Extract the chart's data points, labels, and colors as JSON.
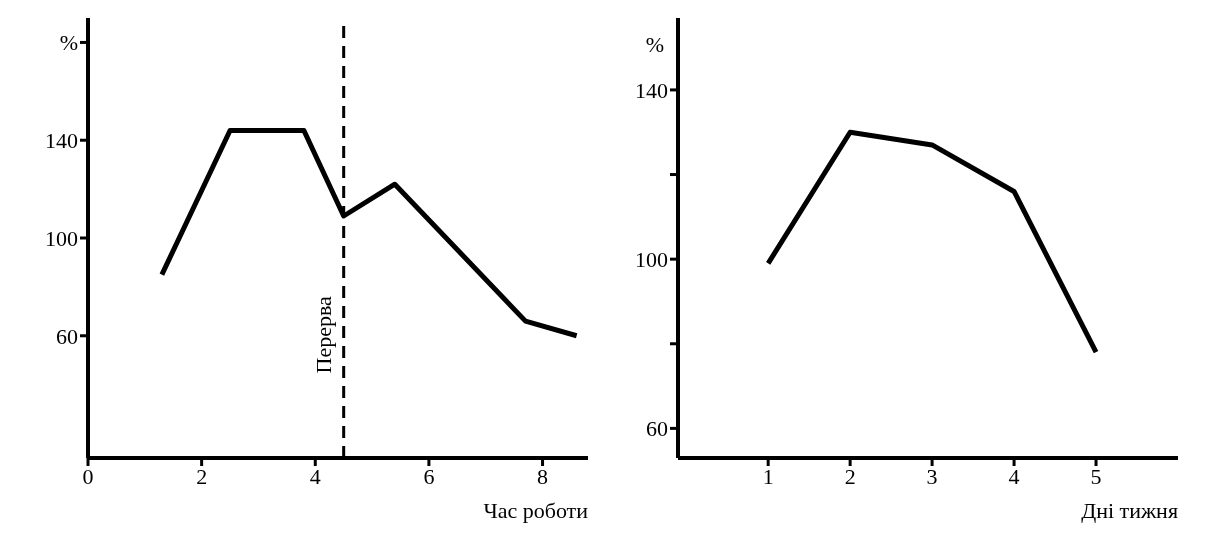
{
  "chart_data": [
    {
      "type": "line",
      "x": [
        1.3,
        2.5,
        3.8,
        4.5,
        5.4,
        7.7,
        8.6
      ],
      "series": [
        {
          "color": "#000000",
          "values": [
            85,
            144,
            144,
            109,
            122,
            66,
            60
          ]
        }
      ],
      "xlim": [
        0,
        8.8
      ],
      "xticks": [
        0,
        2,
        4,
        6,
        8
      ],
      "ylim": [
        10,
        190
      ],
      "yticks": [
        60,
        100,
        140,
        {
          "value": 180,
          "label": "%"
        }
      ],
      "xlabel": "Час роботи",
      "ref_lines": [
        {
          "axis": "x",
          "value": 4.5,
          "label": "Перерва",
          "line_style": "dashed",
          "color": "#000000"
        }
      ],
      "grid": false,
      "marker": "none",
      "line_style": "solid"
    },
    {
      "type": "line",
      "x": [
        1,
        2,
        3,
        4,
        5
      ],
      "series": [
        {
          "color": "#000000",
          "values": [
            99,
            130,
            127,
            116,
            78
          ]
        }
      ],
      "xlim": [
        -0.1,
        6
      ],
      "xticks": [
        1,
        2,
        3,
        4,
        5
      ],
      "ylim": [
        53,
        157
      ],
      "yticks": [
        60,
        {
          "value": 80,
          "label": null
        },
        100,
        {
          "value": 120,
          "label": null
        },
        140
      ],
      "xlabel": "Дні тижня",
      "ylabel": "%",
      "grid": false,
      "marker": "none",
      "line_style": "solid"
    }
  ]
}
